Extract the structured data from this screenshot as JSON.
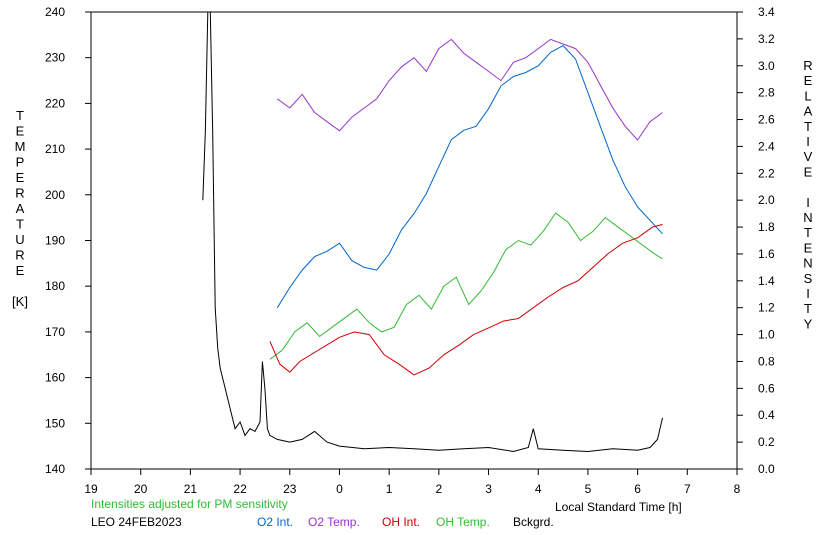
{
  "chart_data": {
    "type": "line",
    "xlabel": "Local Standard Time [h]",
    "ylabel_left": [
      "T",
      "E",
      "M",
      "P",
      "E",
      "R",
      "A",
      "T",
      "U",
      "R",
      "E",
      "",
      "[K]"
    ],
    "ylabel_right": [
      "R",
      "E",
      "L",
      "A",
      "T",
      "I",
      "V",
      "E",
      "",
      "I",
      "N",
      "T",
      "E",
      "N",
      "S",
      "I",
      "T",
      "Y"
    ],
    "x_ticks": [
      "19",
      "20",
      "21",
      "22",
      "23",
      "0",
      "1",
      "2",
      "3",
      "4",
      "5",
      "6",
      "7",
      "8"
    ],
    "y_left_ticks": [
      "140",
      "150",
      "160",
      "170",
      "180",
      "190",
      "200",
      "210",
      "220",
      "230",
      "240"
    ],
    "y_right_ticks": [
      "0.0",
      "0.2",
      "0.4",
      "0.6",
      "0.8",
      "1.0",
      "1.2",
      "1.4",
      "1.6",
      "1.8",
      "2.0",
      "2.2",
      "2.4",
      "2.6",
      "2.8",
      "3.0",
      "3.2",
      "3.4"
    ],
    "xlim": [
      19,
      32
    ],
    "ylim_left": [
      140,
      240
    ],
    "ylim_right": [
      0.0,
      3.4
    ],
    "note": "Intensities adjusted for PM sensitivity",
    "station": "LEO 24FEB2023",
    "legend": [
      {
        "label": "O2 Int.",
        "color": "#0066cc"
      },
      {
        "label": "O2 Temp.",
        "color": "#9933cc"
      },
      {
        "label": "OH Int.",
        "color": "#cc0000"
      },
      {
        "label": "OH Temp.",
        "color": "#33bb33"
      },
      {
        "label": "Bckgrd.",
        "color": "#000000"
      }
    ],
    "series": [
      {
        "name": "O2 Temp.",
        "color": "#9933cc",
        "axis": "left",
        "x": [
          22.75,
          23.0,
          23.25,
          23.5,
          23.75,
          24.0,
          24.25,
          24.5,
          24.75,
          25.0,
          25.25,
          25.5,
          25.75,
          26.0,
          26.25,
          26.5,
          26.75,
          27.0,
          27.25,
          27.5,
          27.75,
          28.0,
          28.25,
          28.5,
          28.75,
          29.0,
          29.25,
          29.5,
          29.75,
          30.0,
          30.25,
          30.5
        ],
        "y": [
          221,
          219,
          222,
          218,
          216,
          214,
          217,
          219,
          221,
          225,
          228,
          230,
          227,
          232,
          234,
          231,
          229,
          227,
          225,
          229,
          230,
          232,
          234,
          233,
          232,
          229,
          224,
          219,
          215,
          212,
          216,
          218
        ]
      },
      {
        "name": "O2 Int.",
        "color": "#0066cc",
        "axis": "right",
        "x": [
          22.75,
          23.0,
          23.25,
          23.5,
          23.75,
          24.0,
          24.25,
          24.5,
          24.75,
          25.0,
          25.25,
          25.5,
          25.75,
          26.0,
          26.25,
          26.5,
          26.75,
          27.0,
          27.25,
          27.5,
          27.75,
          28.0,
          28.25,
          28.5,
          28.75,
          29.0,
          29.25,
          29.5,
          29.75,
          30.0,
          30.25,
          30.5
        ],
        "y": [
          1.2,
          1.35,
          1.48,
          1.58,
          1.62,
          1.68,
          1.55,
          1.5,
          1.48,
          1.6,
          1.78,
          1.9,
          2.05,
          2.25,
          2.45,
          2.52,
          2.55,
          2.68,
          2.85,
          2.92,
          2.95,
          3.0,
          3.1,
          3.15,
          3.05,
          2.8,
          2.55,
          2.3,
          2.1,
          1.95,
          1.85,
          1.75
        ]
      },
      {
        "name": "OH Temp.",
        "color": "#33bb33",
        "axis": "left",
        "x": [
          22.6,
          22.85,
          23.1,
          23.35,
          23.6,
          23.85,
          24.1,
          24.35,
          24.6,
          24.85,
          25.1,
          25.35,
          25.6,
          25.85,
          26.1,
          26.35,
          26.6,
          26.85,
          27.1,
          27.35,
          27.6,
          27.85,
          28.1,
          28.35,
          28.6,
          28.85,
          29.1,
          29.35,
          29.6,
          29.85,
          30.1,
          30.35,
          30.5
        ],
        "y": [
          164,
          166,
          170,
          172,
          169,
          171,
          173,
          175,
          172,
          170,
          171,
          176,
          178,
          175,
          180,
          182,
          176,
          179,
          183,
          188,
          190,
          189,
          192,
          196,
          194,
          190,
          192,
          195,
          193,
          191,
          189,
          187,
          186
        ]
      },
      {
        "name": "OH Int.",
        "color": "#cc0000",
        "axis": "right",
        "x": [
          22.6,
          22.8,
          23.0,
          23.2,
          24.0,
          24.3,
          24.6,
          24.9,
          25.2,
          25.5,
          25.8,
          26.1,
          26.4,
          26.7,
          27.0,
          27.3,
          27.6,
          27.9,
          28.2,
          28.5,
          28.8,
          29.1,
          29.4,
          29.7,
          30.0,
          30.3,
          30.5
        ],
        "y": [
          0.95,
          0.78,
          0.72,
          0.8,
          0.98,
          1.02,
          1.0,
          0.85,
          0.78,
          0.7,
          0.75,
          0.85,
          0.92,
          1.0,
          1.05,
          1.1,
          1.12,
          1.2,
          1.28,
          1.35,
          1.4,
          1.5,
          1.6,
          1.68,
          1.72,
          1.8,
          1.82
        ]
      },
      {
        "name": "Bckgrd.",
        "color": "#000000",
        "axis": "right",
        "x": [
          21.25,
          21.3,
          21.35,
          21.38,
          21.4,
          21.45,
          21.5,
          21.55,
          21.6,
          21.7,
          21.8,
          21.9,
          22.0,
          22.1,
          22.2,
          22.3,
          22.4,
          22.45,
          22.5,
          22.55,
          22.6,
          22.75,
          23.0,
          23.25,
          23.5,
          23.75,
          24.0,
          24.5,
          25.0,
          25.5,
          26.0,
          26.5,
          27.0,
          27.5,
          27.8,
          27.9,
          28.0,
          28.5,
          29.0,
          29.5,
          30.0,
          30.25,
          30.4,
          30.5
        ],
        "y": [
          2.0,
          2.5,
          3.4,
          3.4,
          3.4,
          2.5,
          1.2,
          0.9,
          0.75,
          0.6,
          0.45,
          0.3,
          0.35,
          0.25,
          0.3,
          0.28,
          0.35,
          0.8,
          0.6,
          0.3,
          0.25,
          0.22,
          0.2,
          0.22,
          0.28,
          0.2,
          0.17,
          0.15,
          0.16,
          0.15,
          0.14,
          0.15,
          0.16,
          0.13,
          0.16,
          0.3,
          0.15,
          0.14,
          0.13,
          0.15,
          0.14,
          0.16,
          0.22,
          0.38
        ]
      }
    ]
  }
}
